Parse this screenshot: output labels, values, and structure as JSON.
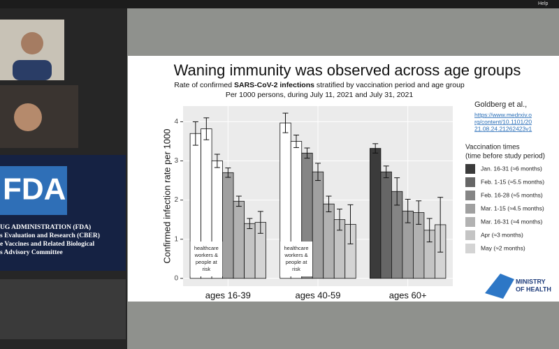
{
  "toolbar": {
    "help": "Help"
  },
  "fda_slide": {
    "logo": "FDA",
    "lines": [
      "UG ADMINISTRATION (FDA)",
      "s Evaluation and Research (CBER)",
      "e Vaccines and Related Biological",
      "s Advisory Committee"
    ]
  },
  "slide": {
    "citation": {
      "author": "Goldberg et al.,",
      "link_lines": [
        "https://www.medrxiv.o",
        "rg/content/10.1101/20",
        "21.08.24.21262423v1"
      ]
    },
    "logo": [
      "MINISTRY",
      "OF HEALTH"
    ]
  },
  "chart_data": {
    "type": "bar",
    "title": "Waning immunity was observed across age groups",
    "subtitle_parts": [
      "Rate of confirmed ",
      "SARS-CoV-2 infections",
      " stratified by vaccination period and age group"
    ],
    "subtitle2": "Per 1000 persons, during July 11, 2021 and July 31, 2021",
    "y_label": "Confirmed infection rate per 1000",
    "categories": [
      "ages 16-39",
      "ages 40-59",
      "ages 60+"
    ],
    "legend_title": [
      "Vaccination times",
      "(time before study period)"
    ],
    "annotations": [
      [
        "healthcare",
        "workers &",
        "people at",
        "risk"
      ],
      [
        "healthcare",
        "workers &",
        "people at",
        "risk"
      ]
    ],
    "series": [
      {
        "name": "Jan. 16-31 (≈6 months)",
        "color": "#3b3b3b",
        "colors": [
          "#ffffff",
          "#ffffff",
          "#3b3b3b"
        ],
        "values": [
          3.7,
          3.97,
          3.32
        ],
        "errors": [
          0.3,
          0.25,
          0.12
        ]
      },
      {
        "name": "Feb. 1-15 (≈5.5 months)",
        "color": "#666666",
        "colors": [
          "#ffffff",
          "#ffffff",
          "#666666"
        ],
        "values": [
          3.82,
          3.5,
          2.72
        ],
        "errors": [
          0.28,
          0.16,
          0.15
        ]
      },
      {
        "name": "Feb. 16-28 (≈5 months)",
        "color": "#858585",
        "colors": [
          "#ffffff",
          "#858585",
          "#858585"
        ],
        "values": [
          3.0,
          3.2,
          2.22
        ],
        "errors": [
          0.17,
          0.13,
          0.35
        ]
      },
      {
        "name": "Mar. 1-15 (≈4.5 months)",
        "color": "#a0a0a0",
        "colors": [
          "#a0a0a0",
          "#a0a0a0",
          "#a0a0a0"
        ],
        "values": [
          2.7,
          2.72,
          1.72
        ],
        "errors": [
          0.12,
          0.22,
          0.3
        ]
      },
      {
        "name": "Mar. 16-31 (≈4 months)",
        "color": "#b2b2b2",
        "colors": [
          "#b2b2b2",
          "#b2b2b2",
          "#b2b2b2"
        ],
        "values": [
          1.97,
          1.9,
          1.68
        ],
        "errors": [
          0.13,
          0.2,
          0.3
        ]
      },
      {
        "name": "Apr (≈3 months)",
        "color": "#c4c4c4",
        "colors": [
          "#c4c4c4",
          "#c4c4c4",
          "#c4c4c4"
        ],
        "values": [
          1.4,
          1.5,
          1.23
        ],
        "errors": [
          0.13,
          0.27,
          0.3
        ]
      },
      {
        "name": "May (≈2 months)",
        "color": "#d4d4d4",
        "colors": [
          "#d4d4d4",
          "#d4d4d4",
          "#d4d4d4"
        ],
        "values": [
          1.43,
          1.38,
          1.37
        ],
        "errors": [
          0.28,
          0.5,
          0.7
        ]
      }
    ],
    "ylim": [
      -0.2,
      4.4
    ],
    "yticks": [
      0,
      1,
      2,
      3,
      4
    ],
    "grid": true
  }
}
